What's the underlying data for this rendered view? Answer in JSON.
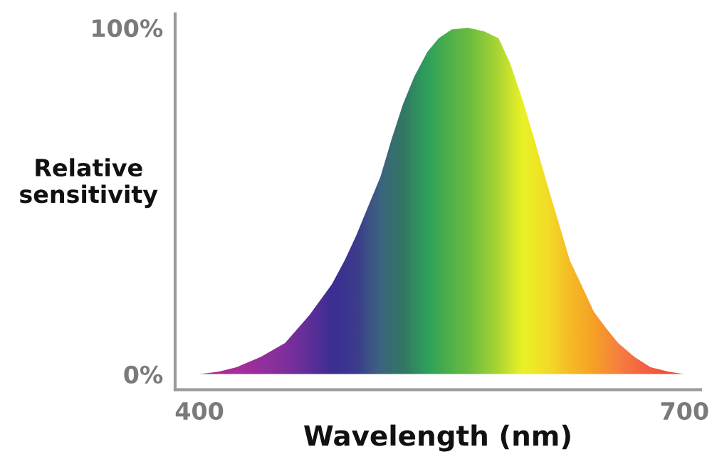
{
  "chart_data": {
    "type": "area",
    "xlabel": "Wavelength (nm)",
    "ylabel": "Relative\nsensitivity",
    "x": [
      400,
      412,
      423,
      438,
      453,
      468,
      482,
      490,
      497,
      504,
      512,
      519,
      526,
      533,
      541,
      548,
      556,
      566,
      576,
      585,
      592,
      600,
      607,
      615,
      622,
      629,
      637,
      644,
      652,
      659,
      669,
      679,
      690,
      700
    ],
    "series": [
      {
        "values": [
          0,
          0.7,
          2,
          5,
          9,
          17,
          26,
          33,
          40,
          48,
          57,
          68,
          78,
          86,
          93,
          97,
          99.5,
          100,
          99,
          97,
          90,
          79,
          68,
          55,
          44,
          33,
          25,
          18,
          13,
          9,
          5,
          2,
          0.7,
          0
        ],
        "colors": [
          "#a0007a",
          "#9d0582",
          "#9a0a8a",
          "#820b8b",
          "#6a0c8c",
          "#420b86",
          "#1a0a80",
          "#1a127d",
          "#1a1a7a",
          "#1a3272",
          "#1a4a6a",
          "#15555a",
          "#10604a",
          "#0d7845",
          "#0a9040",
          "#1d9a36",
          "#35a52a",
          "#50b020",
          "#78c018",
          "#a0d010",
          "#c4e008",
          "#e8f000",
          "#ece400",
          "#f0d800",
          "#f2c400",
          "#f5b000",
          "#f5a000",
          "#f59000",
          "#f57d10",
          "#f56a20",
          "#f25520",
          "#f04020",
          "#f03010",
          "#f02000"
        ]
      }
    ],
    "xlim": [
      385,
      710
    ],
    "ylim": [
      -4.5,
      104
    ],
    "xticks": [
      400,
      700
    ],
    "yticks": [
      {
        "value": 0,
        "label": "0%"
      },
      {
        "value": 100,
        "label": "100%"
      }
    ],
    "grid": false,
    "legend": false
  }
}
